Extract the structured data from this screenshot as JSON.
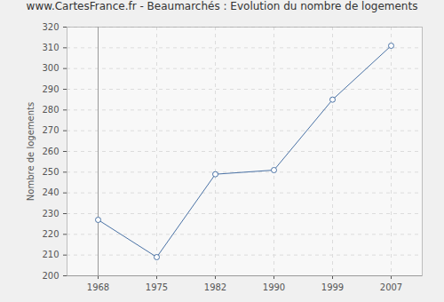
{
  "chart_data": {
    "type": "line",
    "title": "www.CartesFrance.fr - Beaumarchés : Evolution du nombre de logements",
    "y_label": "Nombre de logements",
    "categories": [
      "1968",
      "1975",
      "1982",
      "1990",
      "1999",
      "2007"
    ],
    "values": [
      227,
      209,
      249,
      251,
      285,
      311
    ],
    "color": "#4a72a5",
    "marker": "circle",
    "ylim": [
      200,
      320
    ],
    "yticks": [
      200,
      210,
      220,
      230,
      240,
      250,
      260,
      270,
      280,
      290,
      300,
      310,
      320
    ],
    "grid": true
  }
}
